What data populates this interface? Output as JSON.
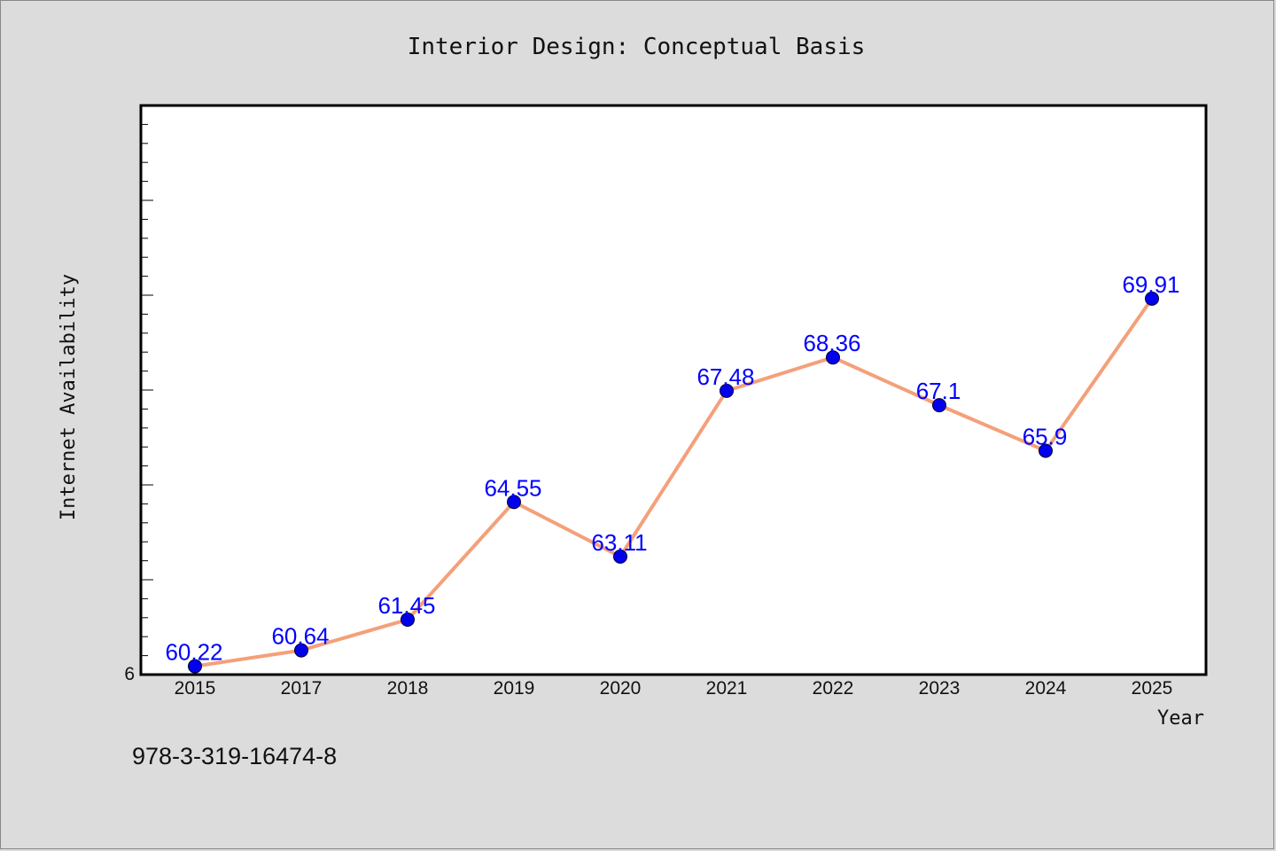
{
  "chart_data": {
    "type": "line",
    "title": "Interior Design: Conceptual Basis",
    "xlabel": "Year",
    "ylabel": "Internet Availability",
    "categories": [
      "2015",
      "2017",
      "2018",
      "2019",
      "2020",
      "2021",
      "2022",
      "2023",
      "2024",
      "2025"
    ],
    "series": [
      {
        "values": [
          60.22,
          60.64,
          61.45,
          64.55,
          63.11,
          67.48,
          68.36,
          67.1,
          65.9,
          69.91
        ],
        "labels": [
          "60.22",
          "60.64",
          "61.45",
          "64.55",
          "63.11",
          "67.48",
          "68.36",
          "67.1",
          "65.9",
          "69.91"
        ],
        "line_color": "#f4a07a",
        "marker_color": "#0000ee"
      }
    ],
    "ylim": [
      60,
      75
    ],
    "y_tick_labels": [
      "6"
    ],
    "grid": false,
    "legend": "none"
  },
  "footer_text": "978-3-319-16474-8",
  "colors": {
    "background": "#dcdcdc",
    "plot_background": "#ffffff",
    "data_label": "#0000ff"
  }
}
